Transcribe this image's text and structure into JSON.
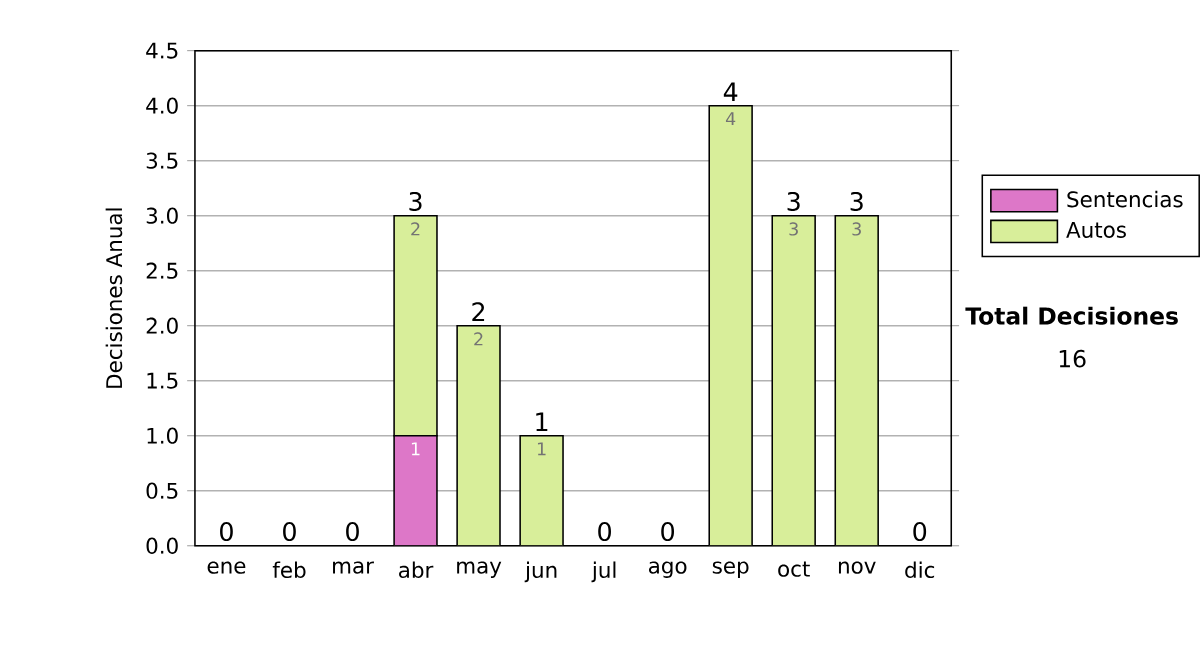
{
  "chart_data": {
    "type": "bar",
    "stacked": true,
    "ylabel": "Decisiones Anual",
    "categories": [
      "ene",
      "feb",
      "mar",
      "abr",
      "may",
      "jun",
      "jul",
      "ago",
      "sep",
      "oct",
      "nov",
      "dic"
    ],
    "series": [
      {
        "name": "Sentencias",
        "color": "#dd77c8",
        "values": [
          0,
          0,
          0,
          1,
          0,
          0,
          0,
          0,
          0,
          0,
          0,
          0
        ],
        "value_labels": [
          null,
          null,
          null,
          "1",
          null,
          null,
          null,
          null,
          null,
          null,
          null,
          null
        ]
      },
      {
        "name": "Autos",
        "color": "#d8ee9a",
        "values": [
          0,
          0,
          0,
          2,
          2,
          1,
          0,
          0,
          4,
          3,
          3,
          0
        ],
        "value_labels": [
          null,
          null,
          null,
          "2",
          "2",
          "1",
          null,
          null,
          "4",
          "3",
          "3",
          null
        ]
      }
    ],
    "totals": [
      "0",
      "0",
      "0",
      "3",
      "2",
      "1",
      "0",
      "0",
      "4",
      "3",
      "3",
      "0"
    ],
    "ylim": [
      0,
      4.5
    ],
    "yticks": [
      {
        "value": 0,
        "label": "0.0"
      },
      {
        "value": 0.5,
        "label": "0.5"
      },
      {
        "value": 1,
        "label": "1.0"
      },
      {
        "value": 1.5,
        "label": "1.5"
      },
      {
        "value": 2,
        "label": "2.0"
      },
      {
        "value": 2.5,
        "label": "2.5"
      },
      {
        "value": 3,
        "label": "3.0"
      },
      {
        "value": 3.5,
        "label": "3.5"
      },
      {
        "value": 4,
        "label": "4.0"
      },
      {
        "value": 4.5,
        "label": "4.5"
      }
    ],
    "grid": "y",
    "legend": "right",
    "annotations": [
      "Total Decisiones",
      "16"
    ]
  }
}
